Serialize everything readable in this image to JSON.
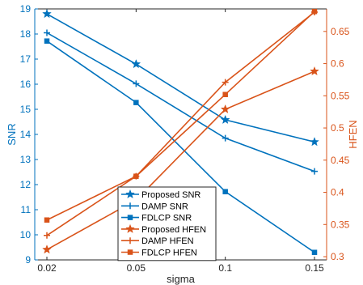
{
  "chart_data": {
    "type": "line",
    "x": [
      0.02,
      0.05,
      0.1,
      0.15
    ],
    "x_tick_labels": [
      "0.02",
      "0.05",
      "0.1",
      "0.15"
    ],
    "xlabel": "sigma",
    "ylabel_left": "SNR",
    "ylabel_right": "HFEN",
    "ylim_left": [
      9,
      19
    ],
    "y_left_ticks": [
      "9",
      "10",
      "11",
      "12",
      "13",
      "14",
      "15",
      "16",
      "17",
      "18",
      "19"
    ],
    "ylim_right": [
      0.295,
      0.685
    ],
    "y_right_ticks": [
      "0.3",
      "0.35",
      "0.4",
      "0.45",
      "0.5",
      "0.55",
      "0.6",
      "0.65"
    ],
    "grid": false,
    "legend_position": "bottom-center",
    "left_axis_color": "#0072BD",
    "right_axis_color": "#D95319",
    "series": [
      {
        "name": "Proposed SNR",
        "axis": "left",
        "marker": "star",
        "color": "#0072BD",
        "values": [
          18.8,
          16.8,
          14.58,
          13.7
        ]
      },
      {
        "name": "DAMP SNR",
        "axis": "left",
        "marker": "plus",
        "color": "#0072BD",
        "values": [
          18.05,
          16.02,
          13.85,
          12.53
        ]
      },
      {
        "name": "FDLCP SNR",
        "axis": "left",
        "marker": "square",
        "color": "#0072BD",
        "values": [
          17.72,
          15.27,
          11.72,
          9.3
        ]
      },
      {
        "name": "Proposed HFEN",
        "axis": "right",
        "marker": "star",
        "color": "#D95319",
        "values": [
          0.311,
          0.388,
          0.529,
          0.588
        ]
      },
      {
        "name": "DAMP HFEN",
        "axis": "right",
        "marker": "plus",
        "color": "#D95319",
        "values": [
          0.333,
          0.425,
          0.571,
          0.68
        ]
      },
      {
        "name": "FDLCP HFEN",
        "axis": "right",
        "marker": "square",
        "color": "#D95319",
        "values": [
          0.357,
          0.425,
          0.552,
          0.681
        ]
      }
    ]
  }
}
